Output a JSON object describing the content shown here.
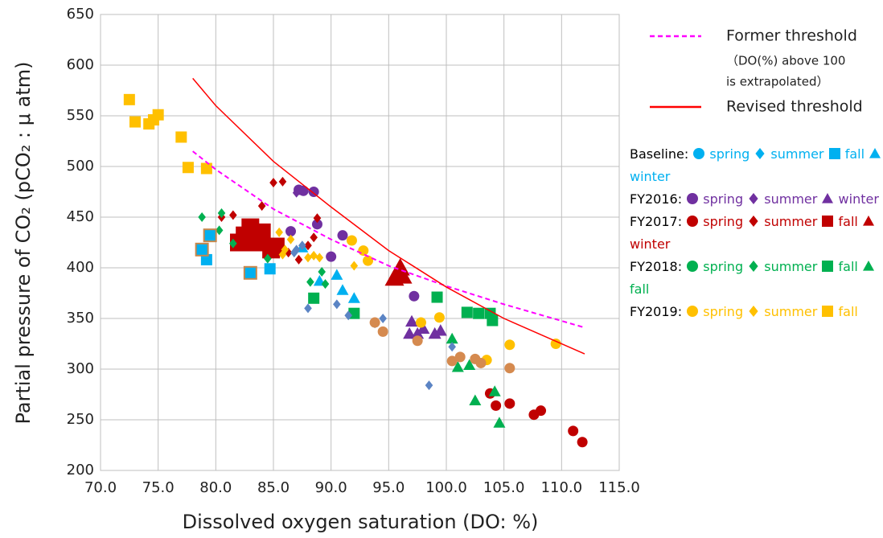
{
  "chart_data": {
    "type": "scatter",
    "xlabel": "Dissolved oxygen saturation (DO: %)",
    "ylabel": "Partial pressure of CO₂ (pCO₂ : μ atm)",
    "xlim": [
      70,
      115
    ],
    "xticks": [
      {
        "value": 70,
        "label": "70.0"
      },
      {
        "value": 75,
        "label": "75.0"
      },
      {
        "value": 80,
        "label": "80.0"
      },
      {
        "value": 85,
        "label": "85.0"
      },
      {
        "value": 90,
        "label": "90.0"
      },
      {
        "value": 95,
        "label": "95.0"
      },
      {
        "value": 100,
        "label": "100.0"
      },
      {
        "value": 105,
        "label": "105.0"
      },
      {
        "value": 110,
        "label": "110.0"
      },
      {
        "value": 115,
        "label": "115.0"
      }
    ],
    "ylim": [
      200,
      650
    ],
    "yticks": [
      200,
      250,
      300,
      350,
      400,
      450,
      500,
      550,
      600,
      650
    ],
    "grid": true,
    "lines": [
      {
        "name": "Former threshold",
        "note": [
          "（DO(%) above 100",
          "is extrapolated）"
        ],
        "color": "#ff00ff",
        "dashed": true,
        "x": [
          78,
          80,
          85,
          90,
          95,
          100,
          105,
          112
        ],
        "y": [
          515,
          497,
          458,
          428,
          402,
          382,
          364,
          341
        ]
      },
      {
        "name": "Revised threshold",
        "color": "#ff0000",
        "dashed": false,
        "x": [
          78,
          80,
          85,
          90,
          95,
          100,
          105,
          112
        ],
        "y": [
          587,
          560,
          505,
          460,
          417,
          381,
          350,
          315
        ]
      }
    ],
    "extra_series": [
      {
        "color": "#5b84c4",
        "marker": "diamond",
        "marker_size": 12,
        "x": [
          86.8,
          87.0,
          87.5,
          88.0,
          90.5,
          91.5,
          93.8,
          94.5,
          98.5,
          100.5
        ],
        "y": [
          415,
          418,
          422,
          360,
          364,
          353,
          345,
          350,
          284,
          322
        ]
      },
      {
        "color": "#d58a4f",
        "marker": "circle",
        "marker_size": 13,
        "x": [
          93.8,
          94.5,
          97.5,
          100.5,
          101.2,
          102.5,
          103.0,
          105.5
        ],
        "y": [
          346,
          337,
          328,
          308,
          312,
          310,
          306,
          301
        ]
      },
      {
        "color": "#00b0f0",
        "stroke": "#c8874b",
        "marker": "square",
        "marker_size": 15,
        "x": [
          78.8,
          79.5,
          83.0
        ],
        "y": [
          418,
          432,
          395
        ]
      }
    ],
    "groups": [
      {
        "name": "Baseline:",
        "color": "#00b0f0",
        "series": [
          {
            "name": "spring",
            "marker": "circle",
            "marker_size": 13,
            "x": [],
            "y": []
          },
          {
            "name": "summer",
            "marker": "diamond",
            "marker_size": 12,
            "x": [],
            "y": []
          },
          {
            "name": "fall",
            "marker": "square",
            "marker_size": 14,
            "x": [
              79.2,
              84.7
            ],
            "y": [
              408,
              399
            ]
          },
          {
            "name": "winter",
            "marker": "triangle",
            "marker_size": 15,
            "x": [
              87.5,
              89.0,
              90.5,
              91.0,
              92.0
            ],
            "y": [
              420,
              387,
              393,
              378,
              370
            ]
          }
        ]
      },
      {
        "name": "FY2016:",
        "color": "#7030a0",
        "series": [
          {
            "name": "spring",
            "marker": "circle",
            "marker_size": 13,
            "x": [
              86.5,
              87.2,
              87.6,
              88.5,
              88.8,
              90.0,
              91.0,
              97.2
            ],
            "y": [
              436,
              477,
              476,
              475,
              443,
              411,
              432,
              372
            ]
          },
          {
            "name": "summer",
            "marker": "diamond",
            "marker_size": 12,
            "x": [
              87.0
            ],
            "y": [
              474
            ]
          },
          {
            "name": "winter",
            "marker": "triangle",
            "marker_size": 16,
            "x": [
              96.8,
              97.0,
              97.5,
              98.0,
              99.0,
              99.5
            ],
            "y": [
              335,
              347,
              335,
              340,
              335,
              338
            ]
          }
        ]
      },
      {
        "name": "FY2017:",
        "color": "#c00000",
        "series": [
          {
            "name": "spring",
            "marker": "circle",
            "marker_size": 13,
            "x": [
              103.8,
              104.3,
              105.5,
              107.6,
              108.2,
              111.0,
              111.8
            ],
            "y": [
              276,
              264,
              266,
              255,
              259,
              239,
              228
            ]
          },
          {
            "name": "summer",
            "marker": "diamond",
            "marker_size": 12,
            "x": [
              80.5,
              81.5,
              84.0,
              85.0,
              85.8,
              86.3,
              87.2,
              88.0,
              88.5,
              88.8
            ],
            "y": [
              450,
              452,
              461,
              484,
              485,
              415,
              408,
              422,
              430,
              449
            ]
          },
          {
            "name": "fall",
            "marker": "square",
            "marker_size": 22,
            "x": [
              82.0,
              82.5,
              83.0,
              83.5,
              84.0,
              84.8,
              85.2
            ],
            "y": [
              425,
              432,
              440,
              425,
              435,
              418,
              421
            ]
          },
          {
            "name": "winter",
            "marker": "triangle",
            "marker_size": 24,
            "x": [
              95.5,
              96.0,
              96.2
            ],
            "y": [
              390,
              400,
              392
            ]
          }
        ]
      },
      {
        "name": "FY2018:",
        "color": "#00b050",
        "series": [
          {
            "name": "spring",
            "marker": "circle",
            "marker_size": 13,
            "x": [],
            "y": []
          },
          {
            "name": "summer",
            "marker": "diamond",
            "marker_size": 12,
            "x": [
              78.8,
              80.3,
              80.5,
              81.5,
              84.5,
              88.2,
              89.2,
              89.5
            ],
            "y": [
              450,
              437,
              454,
              424,
              409,
              386,
              396,
              384
            ]
          },
          {
            "name": "fall",
            "marker": "square",
            "marker_size": 14,
            "x": [
              88.5,
              92.0,
              99.2,
              101.8,
              102.8,
              103.8,
              104.0
            ],
            "y": [
              370,
              355,
              371,
              356,
              355,
              355,
              348
            ]
          },
          {
            "name": "fall",
            "marker": "triangle",
            "marker_size": 15,
            "x": [
              100.5,
              101.0,
              102.0,
              102.5,
              104.2,
              104.6
            ],
            "y": [
              330,
              302,
              304,
              269,
              278,
              247
            ]
          }
        ]
      },
      {
        "name": "FY2019:",
        "color": "#ffc000",
        "series": [
          {
            "name": "spring",
            "marker": "circle",
            "marker_size": 13,
            "x": [
              91.8,
              92.8,
              93.2,
              97.8,
              99.4,
              103.5,
              105.5,
              109.5
            ],
            "y": [
              427,
              417,
              407,
              346,
              351,
              309,
              324,
              325
            ]
          },
          {
            "name": "summer",
            "marker": "diamond",
            "marker_size": 12,
            "x": [
              85.5,
              85.8,
              86.0,
              86.5,
              88.0,
              88.5,
              89.0,
              92.0
            ],
            "y": [
              435,
              413,
              418,
              428,
              410,
              412,
              410,
              402
            ]
          },
          {
            "name": "fall",
            "marker": "square",
            "marker_size": 14,
            "x": [
              72.5,
              73.0,
              74.2,
              74.6,
              75.0,
              77.0,
              77.6,
              79.2
            ],
            "y": [
              566,
              544,
              542,
              546,
              551,
              529,
              499,
              498
            ]
          }
        ]
      }
    ]
  }
}
